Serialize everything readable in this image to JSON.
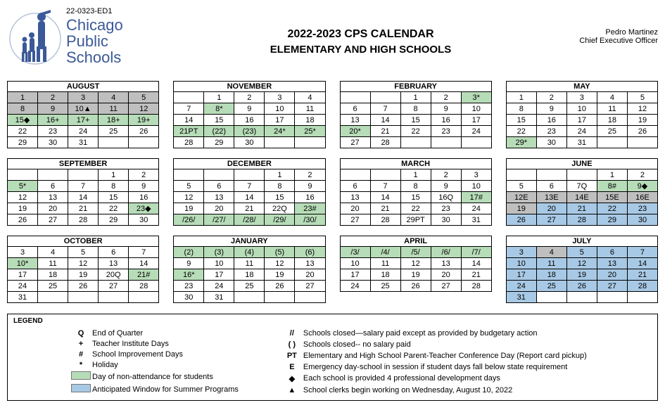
{
  "doc_id": "22-0323-ED1",
  "brand_lines": [
    "Chicago",
    "Public",
    "Schools"
  ],
  "title1": "2022-2023 CPS CALENDAR",
  "title2": "ELEMENTARY AND HIGH SCHOOLS",
  "officer_name": "Pedro Martinez",
  "officer_title": "Chief Executive Officer",
  "colors": {
    "green": "#b7dcb8",
    "gray": "#bfbfbf",
    "blue": "#a8c9e5",
    "brand": "#3b5998"
  },
  "months": [
    {
      "name": "AUGUST",
      "leading": 0,
      "cells": [
        {
          "t": "1",
          "c": "gray"
        },
        {
          "t": "2",
          "c": "gray"
        },
        {
          "t": "3",
          "c": "gray"
        },
        {
          "t": "4",
          "c": "gray"
        },
        {
          "t": "5",
          "c": "gray"
        },
        {
          "t": "8",
          "c": "gray"
        },
        {
          "t": "9",
          "c": "gray"
        },
        {
          "t": "10▲",
          "c": "gray"
        },
        {
          "t": "11",
          "c": "gray"
        },
        {
          "t": "12",
          "c": "gray"
        },
        {
          "t": "15◆",
          "c": "green"
        },
        {
          "t": "16+",
          "c": "green"
        },
        {
          "t": "17+",
          "c": "green"
        },
        {
          "t": "18+",
          "c": "green"
        },
        {
          "t": "19+",
          "c": "green"
        },
        {
          "t": "22"
        },
        {
          "t": "23"
        },
        {
          "t": "24"
        },
        {
          "t": "25"
        },
        {
          "t": "26"
        },
        {
          "t": "29"
        },
        {
          "t": "30"
        },
        {
          "t": "31"
        }
      ],
      "trailing": 2
    },
    {
      "name": "NOVEMBER",
      "leading": 1,
      "cells": [
        {
          "t": "1"
        },
        {
          "t": "2"
        },
        {
          "t": "3"
        },
        {
          "t": "4"
        },
        {
          "t": "7"
        },
        {
          "t": "8*",
          "c": "green"
        },
        {
          "t": "9"
        },
        {
          "t": "10"
        },
        {
          "t": "11"
        },
        {
          "t": "14"
        },
        {
          "t": "15"
        },
        {
          "t": "16"
        },
        {
          "t": "17"
        },
        {
          "t": "18"
        },
        {
          "t": "21PT",
          "c": "green"
        },
        {
          "t": "(22)",
          "c": "green"
        },
        {
          "t": "(23)",
          "c": "green"
        },
        {
          "t": "24*",
          "c": "green"
        },
        {
          "t": "25*",
          "c": "green"
        },
        {
          "t": "28"
        },
        {
          "t": "29"
        },
        {
          "t": "30"
        }
      ],
      "trailing": 2
    },
    {
      "name": "FEBRUARY",
      "leading": 2,
      "cells": [
        {
          "t": "1"
        },
        {
          "t": "2"
        },
        {
          "t": "3*",
          "c": "green"
        },
        {
          "t": "6"
        },
        {
          "t": "7"
        },
        {
          "t": "8"
        },
        {
          "t": "9"
        },
        {
          "t": "10"
        },
        {
          "t": "13"
        },
        {
          "t": "14"
        },
        {
          "t": "15"
        },
        {
          "t": "16"
        },
        {
          "t": "17"
        },
        {
          "t": "20*",
          "c": "green"
        },
        {
          "t": "21"
        },
        {
          "t": "22"
        },
        {
          "t": "23"
        },
        {
          "t": "24"
        },
        {
          "t": "27"
        },
        {
          "t": "28"
        }
      ],
      "trailing": 3
    },
    {
      "name": "MAY",
      "leading": 0,
      "cells": [
        {
          "t": "1"
        },
        {
          "t": "2"
        },
        {
          "t": "3"
        },
        {
          "t": "4"
        },
        {
          "t": "5"
        },
        {
          "t": "8"
        },
        {
          "t": "9"
        },
        {
          "t": "10"
        },
        {
          "t": "11"
        },
        {
          "t": "12"
        },
        {
          "t": "15"
        },
        {
          "t": "16"
        },
        {
          "t": "17"
        },
        {
          "t": "18"
        },
        {
          "t": "19"
        },
        {
          "t": "22"
        },
        {
          "t": "23"
        },
        {
          "t": "24"
        },
        {
          "t": "25"
        },
        {
          "t": "26"
        },
        {
          "t": "29*",
          "c": "green"
        },
        {
          "t": "30"
        },
        {
          "t": "31"
        }
      ],
      "trailing": 2
    },
    {
      "name": "SEPTEMBER",
      "leading": 3,
      "cells": [
        {
          "t": "1"
        },
        {
          "t": "2"
        },
        {
          "t": "5*",
          "c": "green"
        },
        {
          "t": "6"
        },
        {
          "t": "7"
        },
        {
          "t": "8"
        },
        {
          "t": "9"
        },
        {
          "t": "12"
        },
        {
          "t": "13"
        },
        {
          "t": "14"
        },
        {
          "t": "15"
        },
        {
          "t": "16"
        },
        {
          "t": "19"
        },
        {
          "t": "20"
        },
        {
          "t": "21"
        },
        {
          "t": "22"
        },
        {
          "t": "23◆",
          "c": "green"
        },
        {
          "t": "26"
        },
        {
          "t": "27"
        },
        {
          "t": "28"
        },
        {
          "t": "29"
        },
        {
          "t": "30"
        }
      ],
      "trailing": 0
    },
    {
      "name": "DECEMBER",
      "leading": 3,
      "cells": [
        {
          "t": "1"
        },
        {
          "t": "2"
        },
        {
          "t": "5"
        },
        {
          "t": "6"
        },
        {
          "t": "7"
        },
        {
          "t": "8"
        },
        {
          "t": "9"
        },
        {
          "t": "12"
        },
        {
          "t": "13"
        },
        {
          "t": "14"
        },
        {
          "t": "15"
        },
        {
          "t": "16"
        },
        {
          "t": "19"
        },
        {
          "t": "20"
        },
        {
          "t": "21"
        },
        {
          "t": "22Q"
        },
        {
          "t": "23#",
          "c": "green"
        },
        {
          "t": "/26/",
          "c": "green"
        },
        {
          "t": "/27/",
          "c": "green"
        },
        {
          "t": "/28/",
          "c": "green"
        },
        {
          "t": "/29/",
          "c": "green"
        },
        {
          "t": "/30/",
          "c": "green"
        }
      ],
      "trailing": 0
    },
    {
      "name": "MARCH",
      "leading": 2,
      "cells": [
        {
          "t": "1"
        },
        {
          "t": "2"
        },
        {
          "t": "3"
        },
        {
          "t": "6"
        },
        {
          "t": "7"
        },
        {
          "t": "8"
        },
        {
          "t": "9"
        },
        {
          "t": "10"
        },
        {
          "t": "13"
        },
        {
          "t": "14"
        },
        {
          "t": "15"
        },
        {
          "t": "16Q"
        },
        {
          "t": "17#",
          "c": "green"
        },
        {
          "t": "20"
        },
        {
          "t": "21"
        },
        {
          "t": "22"
        },
        {
          "t": "23"
        },
        {
          "t": "24"
        },
        {
          "t": "27"
        },
        {
          "t": "28"
        },
        {
          "t": "29PT"
        },
        {
          "t": "30"
        },
        {
          "t": "31"
        }
      ],
      "trailing": 0
    },
    {
      "name": "JUNE",
      "leading": 3,
      "cells": [
        {
          "t": "1"
        },
        {
          "t": "2"
        },
        {
          "t": "5"
        },
        {
          "t": "6"
        },
        {
          "t": "7Q"
        },
        {
          "t": "8#",
          "c": "green"
        },
        {
          "t": "9◆",
          "c": "green"
        },
        {
          "t": "12E",
          "c": "gray"
        },
        {
          "t": "13E",
          "c": "gray"
        },
        {
          "t": "14E",
          "c": "gray"
        },
        {
          "t": "15E",
          "c": "gray"
        },
        {
          "t": "16E",
          "c": "gray"
        },
        {
          "t": "19",
          "c": "gray"
        },
        {
          "t": "20",
          "c": "blue"
        },
        {
          "t": "21",
          "c": "blue"
        },
        {
          "t": "22",
          "c": "blue"
        },
        {
          "t": "23",
          "c": "blue"
        },
        {
          "t": "26",
          "c": "blue"
        },
        {
          "t": "27",
          "c": "blue"
        },
        {
          "t": "28",
          "c": "blue"
        },
        {
          "t": "29",
          "c": "blue"
        },
        {
          "t": "30",
          "c": "blue"
        }
      ],
      "trailing": 0
    },
    {
      "name": "OCTOBER",
      "leading": 0,
      "cells": [
        {
          "t": "3"
        },
        {
          "t": "4"
        },
        {
          "t": "5"
        },
        {
          "t": "6"
        },
        {
          "t": "7"
        },
        {
          "t": "10*",
          "c": "green"
        },
        {
          "t": "11"
        },
        {
          "t": "12"
        },
        {
          "t": "13"
        },
        {
          "t": "14"
        },
        {
          "t": "17"
        },
        {
          "t": "18"
        },
        {
          "t": "19"
        },
        {
          "t": "20Q"
        },
        {
          "t": "21#",
          "c": "green"
        },
        {
          "t": "24"
        },
        {
          "t": "25"
        },
        {
          "t": "26"
        },
        {
          "t": "27"
        },
        {
          "t": "28"
        },
        {
          "t": "31"
        }
      ],
      "trailing": 4
    },
    {
      "name": "JANUARY",
      "leading": 0,
      "cells": [
        {
          "t": "(2)",
          "c": "green"
        },
        {
          "t": "(3)",
          "c": "green"
        },
        {
          "t": "(4)",
          "c": "green"
        },
        {
          "t": "(5)",
          "c": "green"
        },
        {
          "t": "(6)",
          "c": "green"
        },
        {
          "t": "9"
        },
        {
          "t": "10"
        },
        {
          "t": "11"
        },
        {
          "t": "12"
        },
        {
          "t": "13"
        },
        {
          "t": "16*",
          "c": "green"
        },
        {
          "t": "17"
        },
        {
          "t": "18"
        },
        {
          "t": "19"
        },
        {
          "t": "20"
        },
        {
          "t": "23"
        },
        {
          "t": "24"
        },
        {
          "t": "25"
        },
        {
          "t": "26"
        },
        {
          "t": "27"
        },
        {
          "t": "30"
        },
        {
          "t": "31"
        }
      ],
      "trailing": 3
    },
    {
      "name": "APRIL",
      "leading": 0,
      "cells": [
        {
          "t": "/3/",
          "c": "green"
        },
        {
          "t": "/4/",
          "c": "green"
        },
        {
          "t": "/5/",
          "c": "green"
        },
        {
          "t": "/6/",
          "c": "green"
        },
        {
          "t": "/7/",
          "c": "green"
        },
        {
          "t": "10"
        },
        {
          "t": "11"
        },
        {
          "t": "12"
        },
        {
          "t": "13"
        },
        {
          "t": "14"
        },
        {
          "t": "17"
        },
        {
          "t": "18"
        },
        {
          "t": "19"
        },
        {
          "t": "20"
        },
        {
          "t": "21"
        },
        {
          "t": "24"
        },
        {
          "t": "25"
        },
        {
          "t": "26"
        },
        {
          "t": "27"
        },
        {
          "t": "28"
        }
      ],
      "trailing": 0
    },
    {
      "name": "JULY",
      "leading": 0,
      "cells": [
        {
          "t": "3",
          "c": "blue"
        },
        {
          "t": "4",
          "c": "gray"
        },
        {
          "t": "5",
          "c": "blue"
        },
        {
          "t": "6",
          "c": "blue"
        },
        {
          "t": "7",
          "c": "blue"
        },
        {
          "t": "10",
          "c": "blue"
        },
        {
          "t": "11",
          "c": "blue"
        },
        {
          "t": "12",
          "c": "blue"
        },
        {
          "t": "13",
          "c": "blue"
        },
        {
          "t": "14",
          "c": "blue"
        },
        {
          "t": "17",
          "c": "blue"
        },
        {
          "t": "18",
          "c": "blue"
        },
        {
          "t": "19",
          "c": "blue"
        },
        {
          "t": "20",
          "c": "blue"
        },
        {
          "t": "21",
          "c": "blue"
        },
        {
          "t": "24",
          "c": "blue"
        },
        {
          "t": "25",
          "c": "blue"
        },
        {
          "t": "26",
          "c": "blue"
        },
        {
          "t": "27",
          "c": "blue"
        },
        {
          "t": "28",
          "c": "blue"
        },
        {
          "t": "31",
          "c": "blue"
        }
      ],
      "trailing": 4
    }
  ],
  "legend_title": "LEGEND",
  "legend_left": [
    {
      "sym": "Q",
      "text": "End of Quarter"
    },
    {
      "sym": "+",
      "text": "Teacher Institute Days"
    },
    {
      "sym": "#",
      "text": "School Improvement Days"
    },
    {
      "sym": "*",
      "text": "Holiday"
    },
    {
      "sym": "swatch-green",
      "text": "Day of non-attendance for students"
    },
    {
      "sym": "swatch-blue",
      "text": "Anticipated Window for Summer Programs"
    }
  ],
  "legend_right": [
    {
      "sym": "//",
      "text": "Schools closed—salary paid except as provided by budgetary action"
    },
    {
      "sym": "( )",
      "text": "Schools closed-- no salary paid"
    },
    {
      "sym": "PT",
      "text": "Elementary and High School Parent-Teacher Conference Day (Report card pickup)"
    },
    {
      "sym": "E",
      "text": "Emergency day-school in session if student days fall below state requirement"
    },
    {
      "sym": "◆",
      "text": "Each school is provided 4 professional development days"
    },
    {
      "sym": "▲",
      "text": "School clerks begin working on Wednesday, August 10, 2022"
    }
  ]
}
